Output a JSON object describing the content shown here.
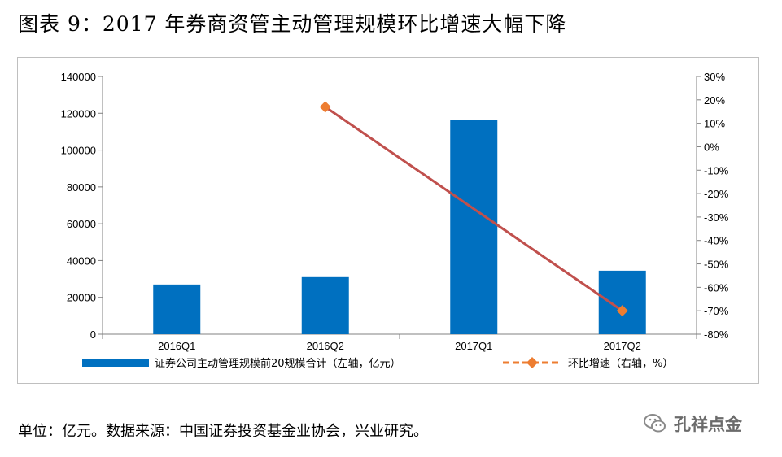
{
  "title": "图表 9：2017 年券商资管主动管理规模环比增速大幅下降",
  "source": "单位：亿元。数据来源：中国证券投资基金业协会，兴业研究。",
  "watermark": "孔祥点金",
  "colors": {
    "bar": "#0070c0",
    "line": "#c0504d",
    "marker": "#ed7d31",
    "axis": "#808080",
    "border": "#bfbfbf"
  },
  "chart_data": {
    "type": "bar",
    "categories": [
      "2016Q1",
      "2016Q2",
      "2017Q1",
      "2017Q2"
    ],
    "series": [
      {
        "name": "证券公司主动管理规模前20规模合计（左轴，亿元）",
        "type": "bar",
        "axis": "left",
        "values": [
          27000,
          31000,
          116500,
          34500
        ]
      },
      {
        "name": "环比增速（右轴，%）",
        "type": "line",
        "axis": "right",
        "values": [
          null,
          17,
          null,
          -70
        ]
      }
    ],
    "y_left": {
      "min": 0,
      "max": 140000,
      "ticks": [
        "0",
        "20000",
        "40000",
        "60000",
        "80000",
        "100000",
        "120000",
        "140000"
      ]
    },
    "y_right": {
      "min": -80,
      "max": 30,
      "ticks": [
        "-80%",
        "-70%",
        "-60%",
        "-50%",
        "-40%",
        "-30%",
        "-20%",
        "-10%",
        "0%",
        "10%",
        "20%",
        "30%"
      ]
    },
    "legend_position": "bottom",
    "grid": false
  }
}
